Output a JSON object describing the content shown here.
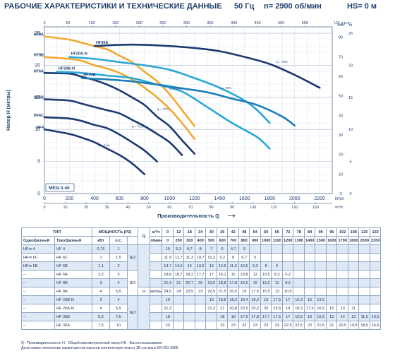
{
  "header": {
    "title": "РАБОЧИЕ ХАРАКТЕРИСТИКИ И ТЕХНИЧЕСКИЕ ДАННЫЕ",
    "freq": "50 Гц",
    "speed": "n= 2900 об/мин",
    "hs": "HS= 0 м"
  },
  "chart_data": {
    "type": "line",
    "xlabel": "Производительность Q",
    "ylabel": "Напор H (метры)",
    "xlim": [
      0,
      2300
    ],
    "ylim": [
      0,
      26
    ],
    "x_ticks": [
      0,
      200,
      400,
      600,
      800,
      1000,
      1200,
      1400,
      1600,
      1800,
      2000,
      2200
    ],
    "x_unit": "l/min",
    "y_ticks": [
      0,
      5,
      10,
      15,
      20,
      25
    ],
    "top_axis": {
      "unit": "US g.p.m.",
      "ticks": [
        "0",
        "50",
        "100",
        "150",
        "200",
        "250",
        "300",
        "350",
        "400",
        "450",
        "500",
        "550"
      ]
    },
    "bottom_axis2": {
      "unit": "m³/h",
      "ticks": [
        "0",
        "10",
        "20",
        "30",
        "40",
        "50",
        "60",
        "70",
        "80",
        "90",
        "100",
        "110",
        "120",
        "130"
      ]
    },
    "right_axis": {
      "unit": "feet",
      "ticks": [
        "0",
        "10",
        "20",
        "30",
        "40",
        "50",
        "60",
        "70",
        "80"
      ]
    },
    "right_axis2": {
      "unit": "m",
      "ticks": [
        "0",
        "5",
        "10",
        "15",
        "20",
        "25"
      ]
    },
    "mei_label": "MEI≥ 0.40",
    "series": [
      {
        "name": "HF4",
        "color": "#1c3870",
        "x": [
          0,
          200,
          300,
          400,
          500,
          600,
          700,
          800
        ],
        "y": [
          10,
          9.3,
          8.7,
          8,
          7,
          6,
          4.7,
          3
        ]
      },
      {
        "name": "HF6C",
        "color": "#1c3870",
        "x": [
          0,
          200,
          300,
          400,
          500,
          600,
          700,
          800,
          900
        ],
        "y": [
          11.9,
          11.7,
          11.3,
          10.7,
          10.2,
          9.2,
          8,
          6.7,
          5
        ]
      },
      {
        "name": "HF6B",
        "color": "#1c3870",
        "x": [
          0,
          200,
          300,
          400,
          500,
          600,
          700,
          800,
          900,
          1000,
          1100
        ],
        "y": [
          14.7,
          14.5,
          14,
          13.5,
          13,
          12.5,
          11.5,
          10.5,
          9.3,
          8,
          6
        ]
      },
      {
        "name": "HF6A",
        "color": "#1c3870",
        "x": [
          0,
          200,
          300,
          400,
          500,
          600,
          700,
          800,
          900,
          1000,
          1100,
          1200
        ],
        "y": [
          18.8,
          18.7,
          18.2,
          17.7,
          17,
          16.1,
          15,
          13.8,
          12,
          10.5,
          8.3,
          6.2
        ]
      },
      {
        "name": "HF8B",
        "color": "#f0a830",
        "x": [
          0,
          200,
          300,
          400,
          500,
          600,
          700,
          800,
          900,
          1000,
          1100,
          1200
        ],
        "y": [
          21.3,
          21,
          20.7,
          20,
          19.5,
          18.8,
          17.8,
          16.5,
          15,
          13.2,
          11,
          8.5
        ]
      },
      {
        "name": "HF8A",
        "color": "#f0a830",
        "x": [
          0,
          200,
          300,
          400,
          500,
          600,
          700,
          800,
          900,
          1000,
          1100,
          1200
        ],
        "y": [
          24.5,
          24,
          23.5,
          23,
          22.5,
          21.5,
          20.5,
          19,
          17.5,
          15.5,
          13,
          10.5
        ]
      },
      {
        "name": "HF20B-N",
        "color": "#2aa7d6",
        "x": [
          100,
          300,
          500,
          700,
          900,
          1100,
          1300,
          1500,
          1700,
          1800
        ],
        "y": [
          19,
          18.8,
          18.4,
          18,
          17,
          15.9,
          13.5,
          11,
          8.8,
          7
        ]
      },
      {
        "name": "HF20A-N",
        "color": "#2aa7d6",
        "x": [
          200,
          400,
          600,
          800,
          1000,
          1200,
          1400,
          1600,
          1700,
          1800
        ],
        "y": [
          21.3,
          21,
          20.5,
          20,
          19.3,
          18,
          16.5,
          14.5,
          13,
          11
        ]
      },
      {
        "name": "HF30B",
        "color": "#1b7eb8",
        "x": [
          300,
          500,
          700,
          900,
          1100,
          1300,
          1500,
          1700,
          1900,
          2000
        ],
        "y": [
          18,
          17.8,
          17.5,
          17,
          16.4,
          15.8,
          14.8,
          13.8,
          12,
          10.6
        ]
      },
      {
        "name": "HF30A",
        "color": "#1c3870",
        "x": [
          400,
          600,
          800,
          1000,
          1200,
          1400,
          1600,
          1800,
          2000,
          2200
        ],
        "y": [
          23,
          23.2,
          23.2,
          23,
          22.7,
          22.2,
          21.3,
          20.2,
          18.5,
          16.5
        ]
      }
    ],
    "efficiency_marks": [
      "η = 71%",
      "η = 71%",
      "η = 77%",
      "η = 71%",
      "η = 70%",
      "η = 78%"
    ]
  },
  "table": {
    "title_type": "ТИП",
    "title_power": "МОЩНОСТЬ (Р2)",
    "col_single": "Однофазный",
    "col_three": "Трехфазный",
    "col_kw": "кВт",
    "col_hp": "л.с.",
    "q_label": "Q",
    "q_unit_m3h": "м³/ч",
    "q_unit_lmin": "л/мин",
    "h_label": "H",
    "h_unit": "метры",
    "q_m3h": [
      "0",
      "12",
      "18",
      "24",
      "30",
      "36",
      "42",
      "48",
      "54",
      "60",
      "66",
      "72",
      "78",
      "84",
      "90",
      "96",
      "102",
      "108",
      "120",
      "132"
    ],
    "q_lmin": [
      "0",
      "200",
      "300",
      "400",
      "500",
      "600",
      "700",
      "800",
      "900",
      "1000",
      "1100",
      "1200",
      "1300",
      "1400",
      "1500",
      "1600",
      "1700",
      "1800",
      "2000",
      "2200"
    ],
    "ie_groups": [
      "IE2",
      "IE3",
      "IE3"
    ],
    "rows": [
      {
        "single": "HFm 4",
        "three": "HF 4",
        "kw": "0,75",
        "hp": "1",
        "h": [
          "10",
          "9,3",
          "8,7",
          "8",
          "7",
          "6",
          "4,7",
          "3",
          "",
          "",
          "",
          "",
          "",
          "",
          "",
          "",
          "",
          "",
          "",
          ""
        ]
      },
      {
        "single": "HFm 6C",
        "three": "HF 6C",
        "kw": "1",
        "hp": "1,5",
        "h": [
          "11,9",
          "11,7",
          "11,3",
          "10,7",
          "10,2",
          "9,2",
          "8",
          "6,7",
          "5",
          "",
          "",
          "",
          "",
          "",
          "",
          "",
          "",
          "",
          "",
          ""
        ]
      },
      {
        "single": "HFm 6B",
        "three": "HF 6B",
        "kw": "1,1",
        "hp": "2",
        "h": [
          "14,7",
          "14,5",
          "14",
          "13,5",
          "13",
          "12,5",
          "11,5",
          "10,5",
          "9,3",
          "8",
          "6",
          "",
          "",
          "",
          "",
          "",
          "",
          "",
          "",
          ""
        ]
      },
      {
        "single": "–",
        "three": "HF 6A",
        "kw": "2,2",
        "hp": "3",
        "h": [
          "18,8",
          "18,7",
          "18,2",
          "17,7",
          "17",
          "16,1",
          "15",
          "13,8",
          "12",
          "10,5",
          "8,3",
          "6,2",
          "",
          "",
          "",
          "",
          "",
          "",
          "",
          ""
        ]
      },
      {
        "single": "–",
        "three": "HF 8B",
        "kw": "3",
        "hp": "4",
        "h": [
          "21,3",
          "21",
          "20,7",
          "20",
          "19,5",
          "18,8",
          "17,8",
          "16,5",
          "15",
          "13,2",
          "11",
          "8,5",
          "",
          "",
          "",
          "",
          "",
          "",
          "",
          ""
        ]
      },
      {
        "single": "–",
        "three": "HF 8A",
        "kw": "4",
        "hp": "5,5",
        "h": [
          "24,5",
          "24",
          "23,5",
          "23",
          "22,5",
          "21,5",
          "20,5",
          "19",
          "17,5",
          "15,5",
          "13",
          "10,5",
          "",
          "",
          "",
          "",
          "",
          "",
          "",
          ""
        ]
      },
      {
        "single": "–",
        "three": "HF 20B-N",
        "kw": "3",
        "hp": "4",
        "h": [
          "19",
          "",
          "",
          "",
          "19",
          "18,8",
          "18,6",
          "18,4",
          "18,2",
          "18",
          "17,5",
          "17",
          "16,3",
          "15",
          "13,5",
          "",
          "",
          "",
          "",
          ""
        ]
      },
      {
        "single": "–",
        "three": "HF 20A-N",
        "kw": "4",
        "hp": "5,5",
        "h": [
          "21,3",
          "",
          "",
          "",
          "21,3",
          "21",
          "20,8",
          "20,5",
          "20,2",
          "20",
          "19,5",
          "19",
          "18,3",
          "17,5",
          "16,5",
          "15",
          "13",
          "11",
          "",
          ""
        ]
      },
      {
        "single": "–",
        "three": "HF 30B",
        "kw": "5,5",
        "hp": "7,5",
        "h": [
          "18",
          "",
          "",
          "",
          "",
          "18",
          "18",
          "17,9",
          "17,8",
          "17,7",
          "17,5",
          "17",
          "16,5",
          "16",
          "15,5",
          "15",
          "14",
          "13",
          "11,5",
          "10,6"
        ]
      },
      {
        "single": "–",
        "three": "HF 30A",
        "kw": "7,5",
        "hp": "10",
        "h": [
          "23",
          "",
          "",
          "",
          "",
          "23",
          "23",
          "23",
          "23",
          "23",
          "23",
          "22,5",
          "22,5",
          "22",
          "21,5",
          "21",
          "20,5",
          "19,5",
          "18,5",
          "16,5"
        ]
      }
    ]
  },
  "footnotes": {
    "line1": "Q - Производительность   H - Общий манометрический напор   HS - Высота всасывания",
    "line2": "Допустимое отклонение характеристик насосов соответствует классу 3В согласно EN ISO 9906."
  }
}
